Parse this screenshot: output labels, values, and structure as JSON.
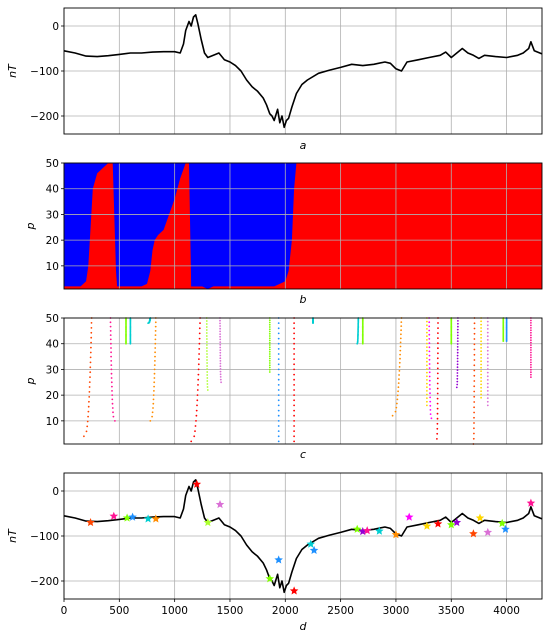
{
  "chart_data": [
    {
      "panel": "a",
      "type": "line",
      "xlabel": "a",
      "ylabel": "nT",
      "xlim": [
        0,
        4320
      ],
      "ylim": [
        -240,
        40
      ],
      "yticks": [
        0,
        -100,
        -200
      ],
      "grid": true,
      "series": [
        {
          "color": "#000000",
          "x": [
            0,
            100,
            200,
            300,
            400,
            500,
            600,
            700,
            800,
            900,
            1000,
            1050,
            1080,
            1100,
            1130,
            1150,
            1170,
            1190,
            1210,
            1240,
            1270,
            1300,
            1350,
            1400,
            1450,
            1500,
            1550,
            1600,
            1650,
            1700,
            1750,
            1800,
            1830,
            1860,
            1880,
            1900,
            1930,
            1950,
            1970,
            1990,
            2010,
            2030,
            2060,
            2100,
            2150,
            2200,
            2300,
            2400,
            2500,
            2600,
            2700,
            2800,
            2900,
            2950,
            3000,
            3050,
            3100,
            3200,
            3300,
            3400,
            3450,
            3500,
            3550,
            3600,
            3650,
            3700,
            3750,
            3800,
            3900,
            4000,
            4100,
            4150,
            4200,
            4220,
            4250,
            4320
          ],
          "y": [
            -55,
            -60,
            -67,
            -68,
            -66,
            -63,
            -60,
            -60,
            -58,
            -57,
            -57,
            -60,
            -40,
            -10,
            10,
            0,
            20,
            25,
            5,
            -30,
            -60,
            -70,
            -65,
            -60,
            -75,
            -80,
            -88,
            -100,
            -120,
            -135,
            -145,
            -160,
            -175,
            -195,
            -200,
            -210,
            -185,
            -215,
            -200,
            -225,
            -210,
            -205,
            -180,
            -150,
            -130,
            -120,
            -105,
            -98,
            -92,
            -85,
            -88,
            -85,
            -80,
            -83,
            -95,
            -100,
            -80,
            -75,
            -70,
            -65,
            -58,
            -70,
            -60,
            -50,
            -60,
            -65,
            -72,
            -65,
            -68,
            -70,
            -65,
            -60,
            -50,
            -35,
            -55,
            -62
          ]
        }
      ]
    },
    {
      "panel": "b",
      "type": "area",
      "xlabel": "b",
      "ylabel": "p",
      "xlim": [
        0,
        4320
      ],
      "ylim": [
        1,
        50
      ],
      "yticks": [
        10,
        20,
        30,
        40,
        50
      ],
      "grid": true,
      "series": [
        {
          "name": "",
          "color": "#ff0000",
          "x": [
            0,
            150,
            200,
            220,
            240,
            260,
            300,
            400,
            440,
            470,
            480,
            520,
            560,
            600,
            650,
            700,
            750,
            780,
            800,
            820,
            850,
            900,
            1000,
            1050,
            1100,
            1130,
            1150,
            1250,
            1300,
            1310,
            1350,
            1400,
            1500,
            1550,
            1600,
            1650,
            1700,
            1750,
            1800,
            1850,
            1900,
            1950,
            2000,
            2040,
            2080,
            2100,
            2200,
            2300,
            2400,
            2500,
            2600,
            2700,
            2750,
            2800,
            2850,
            2900,
            3000,
            3100,
            3150,
            3200,
            3250,
            3300,
            3350,
            3400,
            3450,
            3500,
            3550,
            3600,
            3650,
            3700,
            3750,
            3800,
            4000,
            4320
          ],
          "y": [
            2,
            2,
            4,
            10,
            25,
            40,
            46,
            50,
            50,
            8,
            2,
            2,
            2,
            2,
            2,
            2,
            3,
            8,
            16,
            20,
            22,
            24,
            36,
            44,
            50,
            50,
            2,
            2,
            1,
            2,
            50,
            50,
            50,
            50,
            50,
            50,
            50,
            50,
            50,
            50,
            50,
            50,
            50,
            50,
            50,
            50,
            50,
            50,
            50,
            50,
            50,
            50,
            50,
            50,
            50,
            50,
            50,
            50,
            50,
            50,
            50,
            50,
            50,
            50,
            50,
            50,
            50,
            50,
            50,
            50,
            50,
            50,
            50,
            50
          ]
        },
        {
          "name": "",
          "color": "#0000ff",
          "x": [
            1150,
            1200,
            1250,
            1300,
            1350,
            1400,
            1500,
            1550,
            1600,
            1700,
            1800,
            1850,
            1900,
            1950,
            2000,
            2030,
            2060,
            2080,
            2100
          ],
          "y": [
            2,
            2,
            2,
            1,
            2,
            2,
            2,
            2,
            2,
            2,
            2,
            2,
            2,
            3,
            4,
            8,
            20,
            40,
            50
          ]
        }
      ]
    },
    {
      "panel": "c",
      "type": "scatter",
      "xlabel": "c",
      "ylabel": "p",
      "xlim": [
        0,
        4320
      ],
      "ylim": [
        1,
        50
      ],
      "yticks": [
        10,
        20,
        30,
        40,
        50
      ],
      "grid": true,
      "series": [
        {
          "color": "#ff4500",
          "x": [
            180,
            250
          ],
          "y": [
            4,
            50
          ]
        },
        {
          "color": "#ff1493",
          "x": [
            460,
            420
          ],
          "y": [
            10,
            50
          ]
        },
        {
          "color": "#7fff00",
          "x": [
            560,
            560
          ],
          "y": [
            40,
            50
          ]
        },
        {
          "color": "#00ced1",
          "x": [
            600,
            600
          ],
          "y": [
            40,
            50
          ]
        },
        {
          "color": "#ff8c00",
          "x": [
            780,
            830
          ],
          "y": [
            10,
            50
          ]
        },
        {
          "color": "#00ced1",
          "x": [
            760,
            780
          ],
          "y": [
            48,
            50
          ]
        },
        {
          "color": "#ff0000",
          "x": [
            1150,
            1230
          ],
          "y": [
            2,
            50
          ]
        },
        {
          "color": "#adff2f",
          "x": [
            1300,
            1290
          ],
          "y": [
            22,
            50
          ]
        },
        {
          "color": "#da70d6",
          "x": [
            1420,
            1410
          ],
          "y": [
            25,
            50
          ]
        },
        {
          "color": "#7fff00",
          "x": [
            1860,
            1860
          ],
          "y": [
            29,
            50
          ]
        },
        {
          "color": "#1e90ff",
          "x": [
            1940,
            1940
          ],
          "y": [
            2,
            50
          ]
        },
        {
          "color": "#ff0000",
          "x": [
            2080,
            2080
          ],
          "y": [
            2,
            50
          ]
        },
        {
          "color": "#00ced1",
          "x": [
            2250,
            2250
          ],
          "y": [
            48,
            50
          ]
        },
        {
          "color": "#00ced1",
          "x": [
            2650,
            2660
          ],
          "y": [
            40,
            50
          ]
        },
        {
          "color": "#7fff00",
          "x": [
            2700,
            2700
          ],
          "y": [
            40,
            50
          ]
        },
        {
          "color": "#ff8c00",
          "x": [
            2970,
            3050
          ],
          "y": [
            12,
            50
          ]
        },
        {
          "color": "#ffd700",
          "x": [
            3280,
            3280
          ],
          "y": [
            16,
            50
          ]
        },
        {
          "color": "#ff00ff",
          "x": [
            3320,
            3300
          ],
          "y": [
            11,
            50
          ]
        },
        {
          "color": "#ff0000",
          "x": [
            3370,
            3380
          ],
          "y": [
            3,
            50
          ]
        },
        {
          "color": "#7fff00",
          "x": [
            3500,
            3500
          ],
          "y": [
            40,
            50
          ]
        },
        {
          "color": "#9400d3",
          "x": [
            3550,
            3560
          ],
          "y": [
            23,
            50
          ]
        },
        {
          "color": "#ff4500",
          "x": [
            3700,
            3710
          ],
          "y": [
            1,
            50
          ]
        },
        {
          "color": "#ffd700",
          "x": [
            3770,
            3770
          ],
          "y": [
            19,
            50
          ]
        },
        {
          "color": "#da70d6",
          "x": [
            3830,
            3830
          ],
          "y": [
            16,
            50
          ]
        },
        {
          "color": "#7fff00",
          "x": [
            3970,
            3970
          ],
          "y": [
            41,
            50
          ]
        },
        {
          "color": "#1e90ff",
          "x": [
            4000,
            4000
          ],
          "y": [
            41,
            50
          ]
        },
        {
          "color": "#ff1493",
          "x": [
            4220,
            4220
          ],
          "y": [
            27,
            50
          ]
        }
      ]
    },
    {
      "panel": "d",
      "type": "line",
      "xlabel": "d",
      "ylabel": "nT",
      "xlim": [
        0,
        4320
      ],
      "ylim": [
        -240,
        40
      ],
      "yticks": [
        0,
        -100,
        -200
      ],
      "xticks": [
        0,
        500,
        1000,
        1500,
        2000,
        2500,
        3000,
        3500,
        4000
      ],
      "grid": true,
      "markers": [
        {
          "x": 240,
          "y": -70,
          "color": "#ff4500"
        },
        {
          "x": 450,
          "y": -56,
          "color": "#ff1493"
        },
        {
          "x": 570,
          "y": -60,
          "color": "#7fff00"
        },
        {
          "x": 620,
          "y": -58,
          "color": "#1e90ff"
        },
        {
          "x": 760,
          "y": -62,
          "color": "#00ced1"
        },
        {
          "x": 830,
          "y": -62,
          "color": "#ff8c00"
        },
        {
          "x": 1200,
          "y": 15,
          "color": "#ff0000"
        },
        {
          "x": 1300,
          "y": -70,
          "color": "#adff2f"
        },
        {
          "x": 1410,
          "y": -30,
          "color": "#da70d6"
        },
        {
          "x": 1860,
          "y": -195,
          "color": "#7fff00"
        },
        {
          "x": 1940,
          "y": -153,
          "color": "#1e90ff"
        },
        {
          "x": 2080,
          "y": -222,
          "color": "#ff0000"
        },
        {
          "x": 2230,
          "y": -118,
          "color": "#00ced1"
        },
        {
          "x": 2260,
          "y": -132,
          "color": "#1e90ff"
        },
        {
          "x": 2650,
          "y": -85,
          "color": "#7fff00"
        },
        {
          "x": 2700,
          "y": -90,
          "color": "#9400d3"
        },
        {
          "x": 2740,
          "y": -88,
          "color": "#ff1493"
        },
        {
          "x": 2850,
          "y": -89,
          "color": "#00ced1"
        },
        {
          "x": 3000,
          "y": -97,
          "color": "#ff8c00"
        },
        {
          "x": 3120,
          "y": -58,
          "color": "#ff00ff"
        },
        {
          "x": 3280,
          "y": -78,
          "color": "#ffd700"
        },
        {
          "x": 3380,
          "y": -73,
          "color": "#ff0000"
        },
        {
          "x": 3500,
          "y": -75,
          "color": "#7fff00"
        },
        {
          "x": 3550,
          "y": -70,
          "color": "#9400d3"
        },
        {
          "x": 3700,
          "y": -95,
          "color": "#ff4500"
        },
        {
          "x": 3760,
          "y": -60,
          "color": "#ffd700"
        },
        {
          "x": 3830,
          "y": -92,
          "color": "#da70d6"
        },
        {
          "x": 3960,
          "y": -72,
          "color": "#7fff00"
        },
        {
          "x": 3990,
          "y": -85,
          "color": "#1e90ff"
        },
        {
          "x": 4220,
          "y": -27,
          "color": "#ff1493"
        }
      ]
    }
  ]
}
